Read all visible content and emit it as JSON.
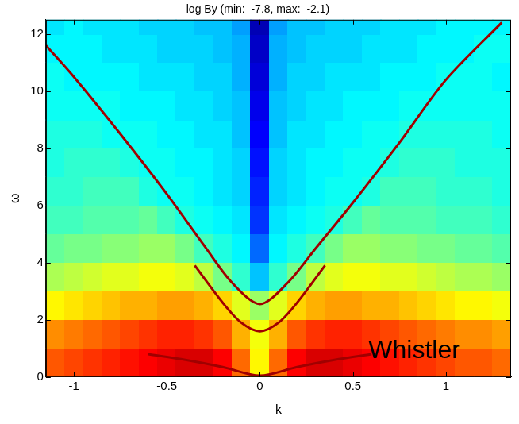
{
  "chart_data": {
    "type": "heatmap",
    "title": "log By (min:  -7.8, max:  -2.1)",
    "x_label": "k",
    "y_label": "ω",
    "xlim": [
      -1.15,
      1.35
    ],
    "xticks": [
      -1,
      -0.5,
      0,
      0.5,
      1
    ],
    "ylim": [
      0,
      12.5
    ],
    "yticks": [
      0,
      2,
      4,
      6,
      8,
      10,
      12
    ],
    "grid": false,
    "color_range": [
      -7.8,
      -2.1
    ],
    "x_bins": [
      -1.15,
      -1.05,
      -0.95,
      -0.85,
      -0.75,
      -0.65,
      -0.55,
      -0.45,
      -0.35,
      -0.25,
      -0.15,
      -0.05,
      0.05,
      0.15,
      0.25,
      0.35,
      0.45,
      0.55,
      0.65,
      0.75,
      0.85,
      0.95,
      1.05,
      1.15,
      1.25,
      1.35
    ],
    "y_bins": [
      0,
      1,
      2,
      3,
      4,
      5,
      6,
      7,
      8,
      9,
      10,
      11,
      12,
      12.5
    ],
    "cells": [
      [
        -3.3,
        -3.2,
        -3.1,
        -3.0,
        -2.9,
        -2.8,
        -2.7,
        -2.6,
        -2.6,
        -2.8,
        -3.4,
        -4.2,
        -3.4,
        -2.8,
        -2.6,
        -2.6,
        -2.7,
        -2.8,
        -2.9,
        -3.0,
        -3.1,
        -3.2,
        -3.3,
        -3.3,
        -3.4
      ],
      [
        -3.6,
        -3.5,
        -3.4,
        -3.3,
        -3.2,
        -3.1,
        -3.0,
        -3.0,
        -3.1,
        -3.3,
        -3.8,
        -4.3,
        -3.8,
        -3.3,
        -3.1,
        -3.0,
        -3.0,
        -3.1,
        -3.2,
        -3.3,
        -3.4,
        -3.5,
        -3.6,
        -3.6,
        -3.7
      ],
      [
        -4.2,
        -4.1,
        -4.0,
        -3.9,
        -3.8,
        -3.8,
        -3.7,
        -3.7,
        -3.8,
        -4.0,
        -4.4,
        -4.8,
        -4.4,
        -4.0,
        -3.8,
        -3.7,
        -3.7,
        -3.8,
        -3.8,
        -3.9,
        -4.0,
        -4.1,
        -4.2,
        -4.2,
        -4.3
      ],
      [
        -4.7,
        -4.6,
        -4.5,
        -4.4,
        -4.4,
        -4.3,
        -4.3,
        -4.4,
        -4.6,
        -5.0,
        -5.4,
        -6.0,
        -5.4,
        -5.0,
        -4.6,
        -4.4,
        -4.3,
        -4.3,
        -4.4,
        -4.4,
        -4.5,
        -4.6,
        -4.7,
        -4.7,
        -4.8
      ],
      [
        -5.1,
        -5.0,
        -5.0,
        -4.9,
        -4.9,
        -4.8,
        -4.8,
        -5.0,
        -5.3,
        -5.5,
        -5.7,
        -6.5,
        -5.7,
        -5.5,
        -5.3,
        -5.0,
        -4.8,
        -4.8,
        -4.9,
        -4.9,
        -5.0,
        -5.0,
        -5.1,
        -5.1,
        -5.2
      ],
      [
        -5.3,
        -5.3,
        -5.2,
        -5.2,
        -5.2,
        -5.1,
        -5.3,
        -5.5,
        -5.6,
        -5.7,
        -5.8,
        -6.8,
        -5.8,
        -5.7,
        -5.6,
        -5.5,
        -5.3,
        -5.1,
        -5.2,
        -5.2,
        -5.2,
        -5.3,
        -5.3,
        -5.3,
        -5.4
      ],
      [
        -5.4,
        -5.4,
        -5.3,
        -5.3,
        -5.3,
        -5.5,
        -5.6,
        -5.6,
        -5.7,
        -5.8,
        -5.9,
        -6.9,
        -5.9,
        -5.8,
        -5.7,
        -5.6,
        -5.6,
        -5.5,
        -5.3,
        -5.3,
        -5.3,
        -5.4,
        -5.4,
        -5.4,
        -5.5
      ],
      [
        -5.5,
        -5.4,
        -5.4,
        -5.4,
        -5.5,
        -5.6,
        -5.6,
        -5.7,
        -5.7,
        -5.8,
        -5.9,
        -7.0,
        -5.9,
        -5.8,
        -5.7,
        -5.7,
        -5.6,
        -5.6,
        -5.5,
        -5.4,
        -5.4,
        -5.4,
        -5.5,
        -5.5,
        -5.5
      ],
      [
        -5.5,
        -5.5,
        -5.5,
        -5.6,
        -5.6,
        -5.6,
        -5.7,
        -5.7,
        -5.8,
        -5.8,
        -6.0,
        -7.1,
        -6.0,
        -5.8,
        -5.8,
        -5.7,
        -5.7,
        -5.6,
        -5.6,
        -5.5,
        -5.5,
        -5.5,
        -5.5,
        -5.5,
        -5.6
      ],
      [
        -5.6,
        -5.6,
        -5.6,
        -5.6,
        -5.7,
        -5.7,
        -5.7,
        -5.8,
        -5.8,
        -5.9,
        -6.0,
        -7.2,
        -6.0,
        -5.9,
        -5.8,
        -5.8,
        -5.7,
        -5.7,
        -5.7,
        -5.6,
        -5.6,
        -5.6,
        -5.6,
        -5.6,
        -5.6
      ],
      [
        -5.6,
        -5.7,
        -5.7,
        -5.7,
        -5.7,
        -5.8,
        -5.8,
        -5.8,
        -5.9,
        -5.9,
        -6.1,
        -7.3,
        -6.1,
        -5.9,
        -5.9,
        -5.8,
        -5.8,
        -5.8,
        -5.7,
        -5.7,
        -5.7,
        -5.6,
        -5.6,
        -5.6,
        -5.7
      ],
      [
        -5.7,
        -5.7,
        -5.7,
        -5.8,
        -5.8,
        -5.8,
        -5.9,
        -5.9,
        -5.9,
        -6.0,
        -6.1,
        -7.4,
        -6.1,
        -6.0,
        -5.9,
        -5.9,
        -5.9,
        -5.8,
        -5.8,
        -5.8,
        -5.7,
        -5.7,
        -5.7,
        -5.6,
        -5.6
      ],
      [
        -5.8,
        -5.7,
        -5.8,
        -5.8,
        -5.8,
        -5.9,
        -5.9,
        -5.9,
        -6.0,
        -6.0,
        -6.2,
        -7.5,
        -6.2,
        -6.0,
        -6.0,
        -5.9,
        -5.9,
        -5.9,
        -5.8,
        -5.8,
        -5.8,
        -5.7,
        -5.7,
        -5.7,
        -5.7
      ]
    ],
    "series": [
      {
        "type": "line",
        "color": "#a00000",
        "marker": "none",
        "line_style": "solid",
        "x": [
          -1.15,
          -1.0,
          -0.75,
          -0.5,
          -0.3,
          -0.15,
          0,
          0.15,
          0.3,
          0.5,
          0.75,
          1.0,
          1.3
        ],
        "values": [
          11.6,
          10.5,
          8.5,
          6.4,
          4.6,
          3.3,
          2.55,
          3.3,
          4.5,
          6.1,
          8.2,
          10.4,
          12.4
        ]
      },
      {
        "type": "line",
        "color": "#a00000",
        "marker": "none",
        "line_style": "solid",
        "x": [
          -0.35,
          -0.2,
          -0.1,
          0,
          0.1,
          0.2,
          0.35
        ],
        "values": [
          3.9,
          2.6,
          1.9,
          1.6,
          1.9,
          2.6,
          3.9
        ]
      },
      {
        "type": "line",
        "color": "#a00000",
        "marker": "none",
        "line_style": "solid",
        "x": [
          -0.6,
          -0.4,
          -0.2,
          0,
          0.2,
          0.4,
          0.6
        ],
        "values": [
          0.8,
          0.6,
          0.35,
          0.05,
          0.35,
          0.6,
          0.8
        ]
      }
    ],
    "annotations": [
      {
        "text": "Whistler",
        "x": 0.83,
        "y": 0.9
      }
    ]
  }
}
